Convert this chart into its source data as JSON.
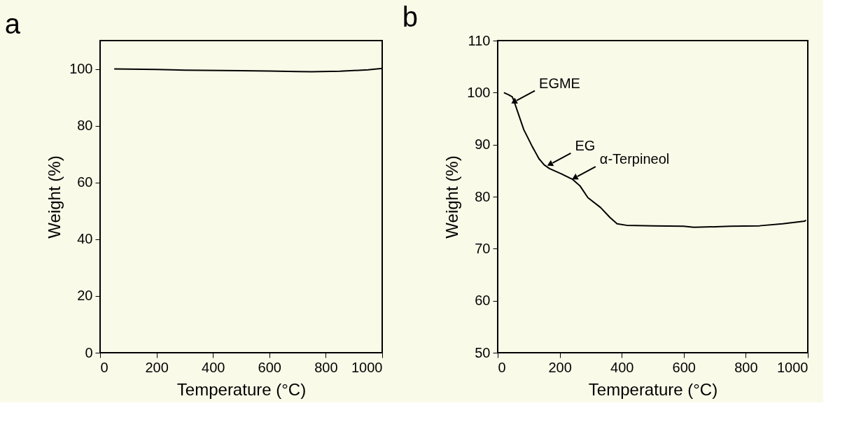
{
  "chart_data": [
    {
      "type": "line",
      "title": "a",
      "xlabel": "Temperature (°C)",
      "ylabel": "Weight (%)",
      "xlim": [
        0,
        1000
      ],
      "xticks": [
        0,
        200,
        400,
        600,
        800,
        1000
      ],
      "ylim": [
        0,
        110
      ],
      "yticks": [
        0,
        20,
        40,
        60,
        80,
        100
      ],
      "grid": false,
      "series": [
        {
          "color": "#000000",
          "x": [
            50,
            200,
            300,
            500,
            600,
            700,
            750,
            850,
            950,
            1000
          ],
          "values": [
            100,
            99.8,
            99.6,
            99.4,
            99.3,
            99.1,
            99.0,
            99.2,
            99.7,
            100.2
          ]
        }
      ]
    },
    {
      "type": "line",
      "title": "b",
      "xlabel": "Temperature (°C)",
      "ylabel": "Weight (%)",
      "xlim": [
        0,
        1000
      ],
      "xticks": [
        0,
        200,
        400,
        600,
        800,
        1000
      ],
      "ylim": [
        50,
        110
      ],
      "yticks": [
        50,
        60,
        70,
        80,
        90,
        100,
        110
      ],
      "grid": false,
      "series": [
        {
          "color": "#000000",
          "x": [
            20,
            35,
            47,
            53,
            84,
            110,
            133,
            150,
            167,
            205,
            242,
            265,
            291,
            332,
            362,
            385,
            415,
            500,
            599,
            633,
            750,
            844,
            919,
            990,
            994
          ],
          "values": [
            100,
            99.6,
            99.2,
            98.3,
            92.9,
            89.8,
            87.3,
            86.1,
            85.4,
            84.4,
            83.3,
            82.1,
            79.8,
            77.9,
            76.0,
            74.8,
            74.5,
            74.4,
            74.3,
            74.1,
            74.3,
            74.4,
            74.8,
            75.3,
            75.5
          ]
        }
      ],
      "annotations": [
        {
          "text": "EGME",
          "x": 52,
          "y": 98.2
        },
        {
          "text": "EG",
          "x": 168,
          "y": 86.2
        },
        {
          "text": "α-Terpineol",
          "x": 248,
          "y": 83.6
        }
      ]
    }
  ]
}
